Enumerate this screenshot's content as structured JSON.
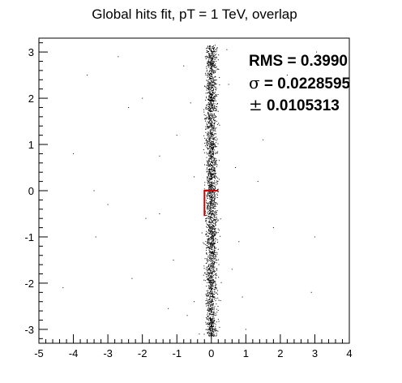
{
  "chart_data": {
    "type": "scatter",
    "title": "Global hits fit, pT = 1 TeV, overlap",
    "xlabel": "",
    "ylabel": "",
    "xlim": [
      -5,
      4
    ],
    "ylim": [
      -3.3,
      3.3
    ],
    "x_ticks": [
      -5,
      -4,
      -3,
      -2,
      -1,
      0,
      1,
      2,
      3,
      4
    ],
    "x_tick_labels": [
      "-5",
      "-4",
      "-3",
      "-2",
      "-1",
      "0",
      "1",
      "2",
      "3",
      "4"
    ],
    "y_ticks": [
      -3,
      -2,
      -1,
      0,
      1,
      2,
      3
    ],
    "y_tick_labels": [
      "-3",
      "-2",
      "-1",
      "0",
      "1",
      "2",
      "3"
    ],
    "grid": false,
    "point_color": "#000000",
    "band": {
      "x_center": 0.0,
      "x_spread": 0.1,
      "y_range": [
        -3.15,
        3.15
      ]
    },
    "fit_line": {
      "color": "#d00000",
      "points": [
        [
          -0.2,
          -0.55
        ],
        [
          -0.2,
          0.0
        ],
        [
          0.2,
          0.0
        ]
      ]
    },
    "outliers": [
      [
        -4.0,
        0.8
      ],
      [
        -3.4,
        0.0
      ],
      [
        -3.0,
        -0.3
      ],
      [
        -3.35,
        -1.0
      ],
      [
        -2.4,
        1.8
      ],
      [
        -2.0,
        2.0
      ],
      [
        -2.3,
        -1.9
      ],
      [
        -1.5,
        0.75
      ],
      [
        -1.5,
        -0.5
      ],
      [
        -1.25,
        -2.55
      ],
      [
        -1.0,
        1.2
      ],
      [
        -0.8,
        2.7
      ],
      [
        -0.7,
        -2.7
      ],
      [
        -0.5,
        0.3
      ],
      [
        -0.5,
        -2.4
      ],
      [
        -1.9,
        -0.6
      ],
      [
        0.5,
        2.3
      ],
      [
        0.6,
        -1.7
      ],
      [
        0.9,
        -2.3
      ],
      [
        0.7,
        0.5
      ],
      [
        1.0,
        -3.0
      ],
      [
        1.5,
        1.1
      ],
      [
        1.35,
        0.2
      ],
      [
        1.8,
        -0.8
      ],
      [
        2.2,
        2.5
      ],
      [
        3.05,
        3.0
      ],
      [
        2.9,
        -2.2
      ],
      [
        3.0,
        -1.0
      ],
      [
        -3.6,
        2.5
      ],
      [
        -2.7,
        2.9
      ],
      [
        -0.35,
        -3.1
      ],
      [
        0.45,
        3.05
      ],
      [
        -0.6,
        1.9
      ],
      [
        0.8,
        -1.1
      ],
      [
        -1.1,
        -1.5
      ],
      [
        -4.3,
        -2.1
      ]
    ]
  },
  "stats": {
    "rms_label": "RMS = 0.3990",
    "sigma_symbol": "σ",
    "sigma_text": " = 0.0228595",
    "pm_symbol": "±",
    "pm_text": " 0.0105313"
  }
}
